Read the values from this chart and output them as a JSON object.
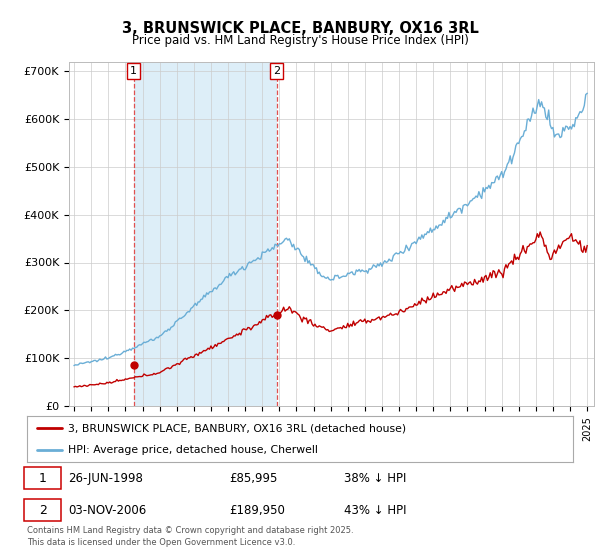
{
  "title": "3, BRUNSWICK PLACE, BANBURY, OX16 3RL",
  "subtitle": "Price paid vs. HM Land Registry's House Price Index (HPI)",
  "hpi_label": "HPI: Average price, detached house, Cherwell",
  "property_label": "3, BRUNSWICK PLACE, BANBURY, OX16 3RL (detached house)",
  "footnote": "Contains HM Land Registry data © Crown copyright and database right 2025.\nThis data is licensed under the Open Government Licence v3.0.",
  "ylim": [
    0,
    720000
  ],
  "yticks": [
    0,
    100000,
    200000,
    300000,
    400000,
    500000,
    600000,
    700000
  ],
  "ytick_labels": [
    "£0",
    "£100K",
    "£200K",
    "£300K",
    "£400K",
    "£500K",
    "£600K",
    "£700K"
  ],
  "hpi_color": "#6aaed6",
  "hpi_fill_color": "#ddeef8",
  "property_color": "#c00000",
  "vline_color": "#e05050",
  "purchase1_year": 1998.48,
  "purchase1_price": 85995,
  "purchase2_year": 2006.84,
  "purchase2_price": 189950,
  "x_start_year": 1995,
  "x_end_year": 2025,
  "background_color": "#ffffff",
  "grid_color": "#cccccc",
  "shade_color": "#ddeef8"
}
